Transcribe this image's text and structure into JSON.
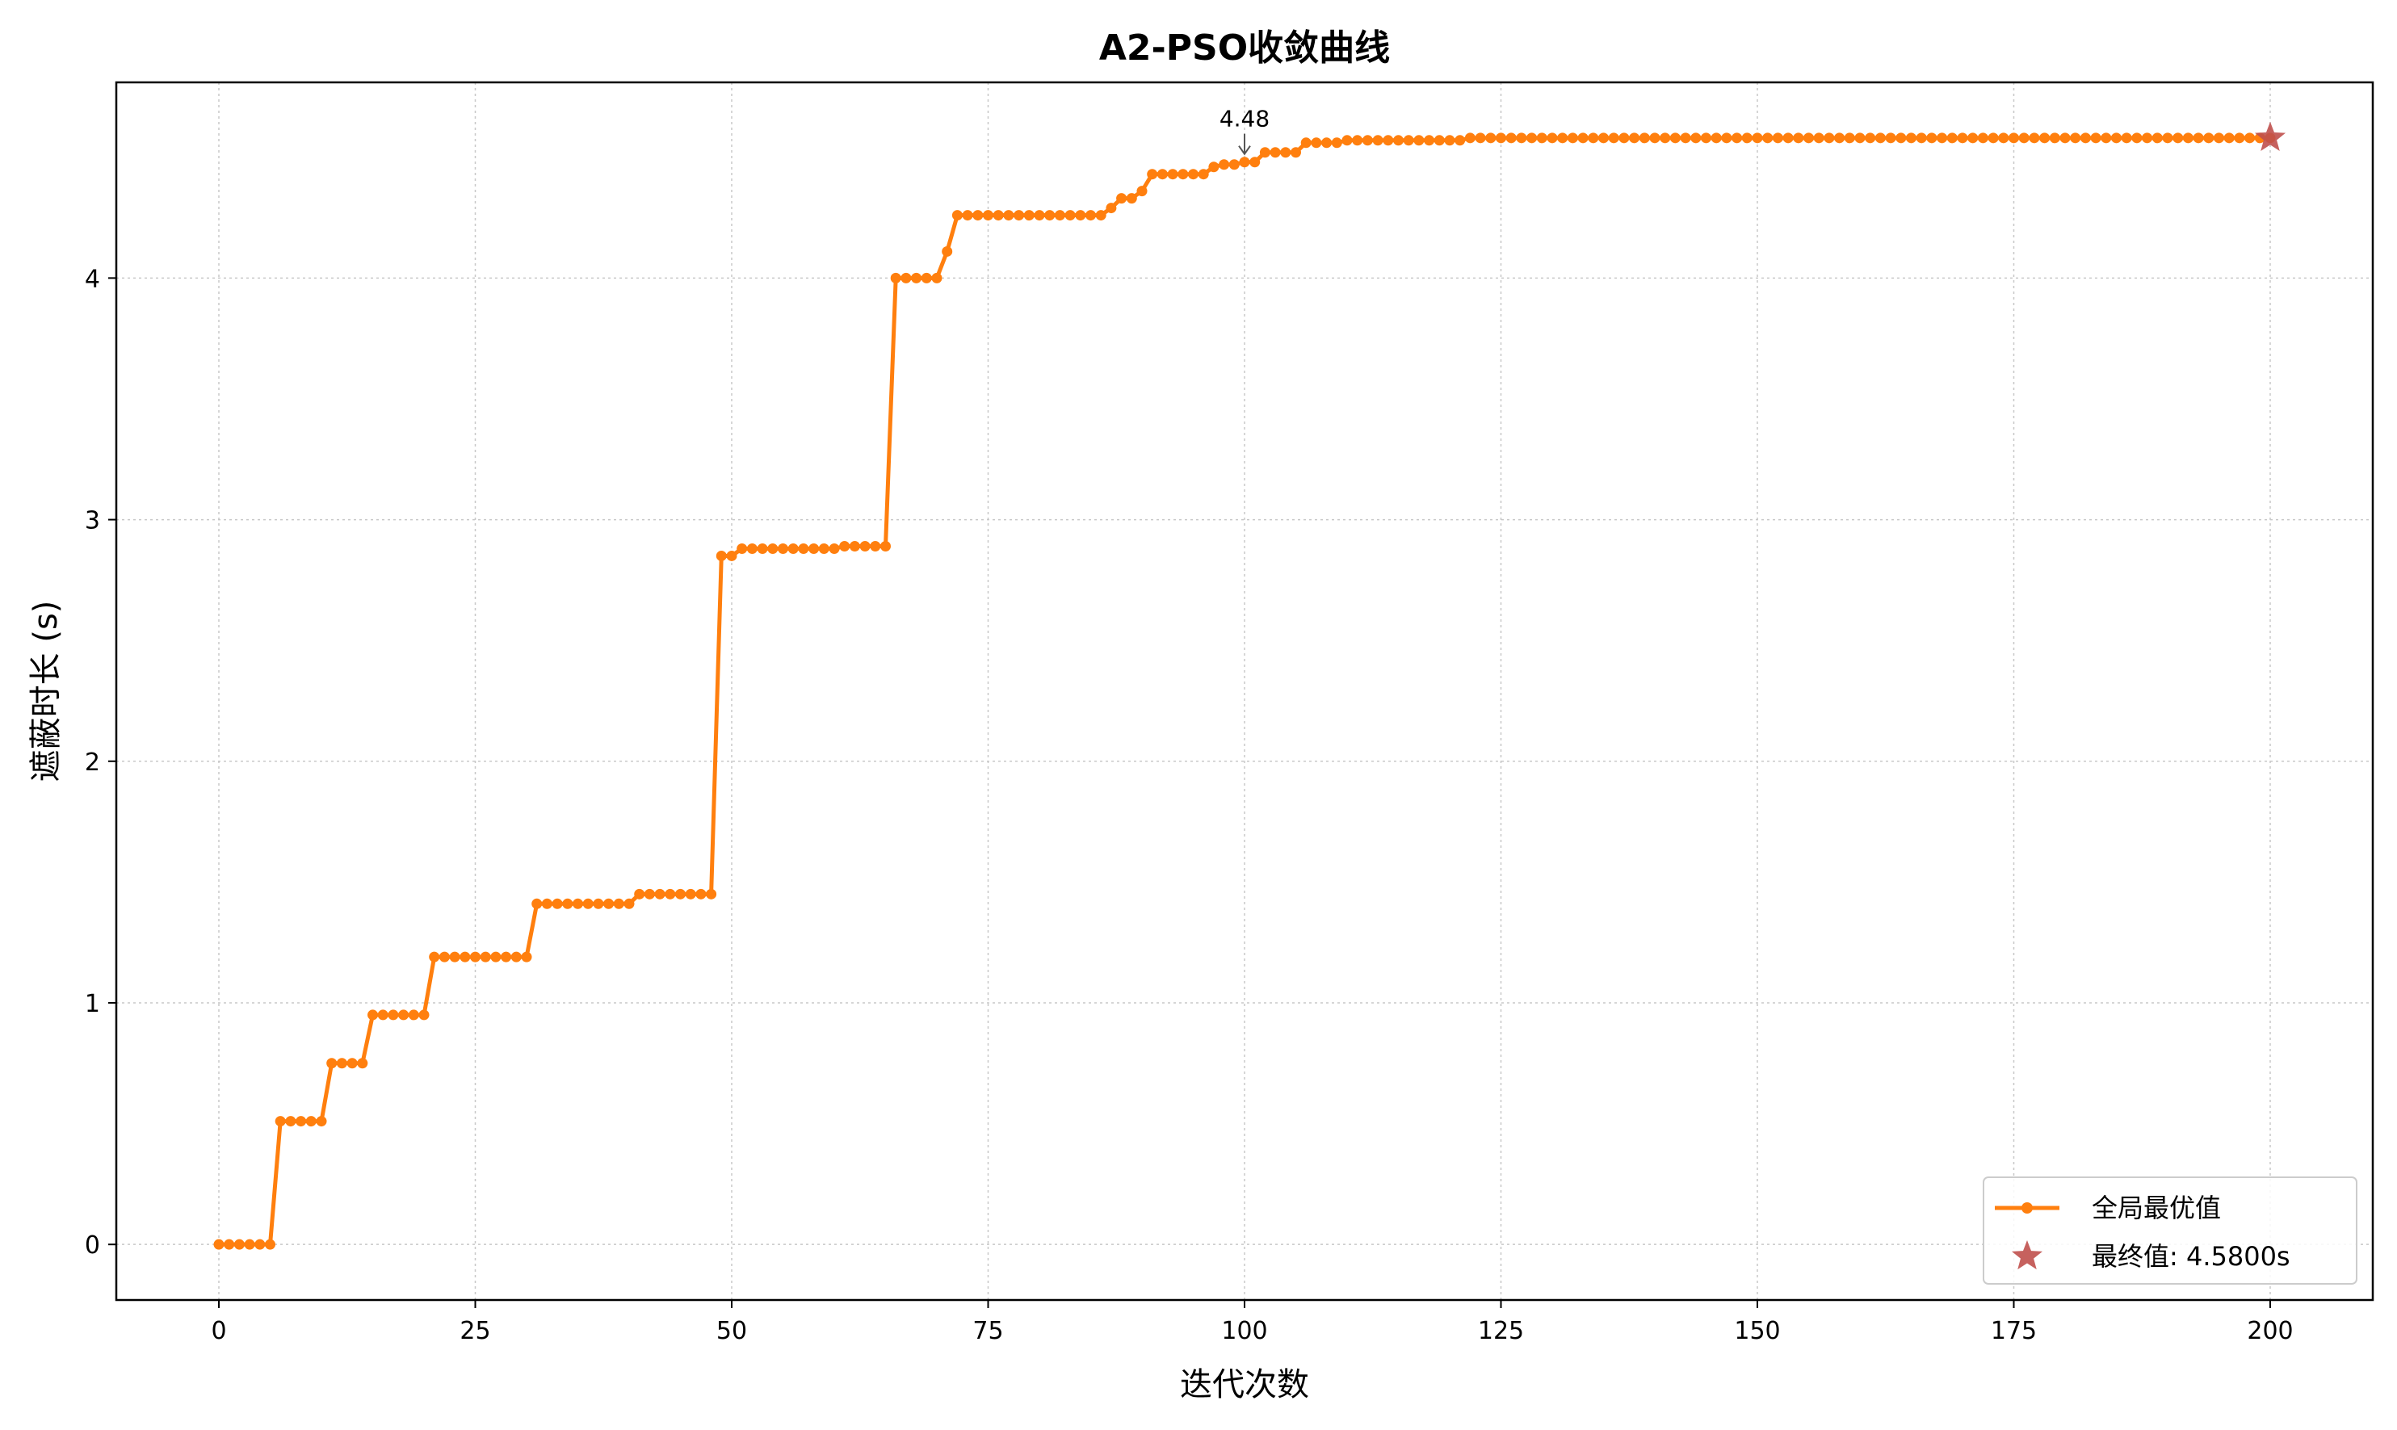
{
  "chart_data": {
    "type": "line",
    "title": "A2-PSO收敛曲线",
    "xlabel": "迭代次数",
    "ylabel": "遮蔽时长 (s)",
    "xlim": [
      -10,
      210
    ],
    "ylim": [
      -0.23,
      4.81
    ],
    "grid": true,
    "legend_position": "lower-right",
    "x_ticks": [
      0,
      25,
      50,
      75,
      100,
      125,
      150,
      175,
      200
    ],
    "y_ticks": [
      0,
      1,
      2,
      3,
      4
    ],
    "series": [
      {
        "name": "全局最优值",
        "color": "#ff7f0e",
        "marker": "circle",
        "steps": [
          [
            0,
            0.0
          ],
          [
            6,
            0.51
          ],
          [
            11,
            0.75
          ],
          [
            15,
            0.95
          ],
          [
            21,
            1.19
          ],
          [
            31,
            1.41
          ],
          [
            41,
            1.45
          ],
          [
            49,
            2.85
          ],
          [
            51,
            2.88
          ],
          [
            61,
            2.89
          ],
          [
            66,
            4.0
          ],
          [
            71,
            4.11
          ],
          [
            72,
            4.26
          ],
          [
            87,
            4.29
          ],
          [
            88,
            4.33
          ],
          [
            90,
            4.36
          ],
          [
            91,
            4.43
          ],
          [
            97,
            4.46
          ],
          [
            98,
            4.47
          ],
          [
            100,
            4.48
          ],
          [
            102,
            4.52
          ],
          [
            106,
            4.56
          ],
          [
            110,
            4.57
          ],
          [
            122,
            4.58
          ],
          [
            200,
            4.58
          ]
        ]
      }
    ],
    "final_point": {
      "label": "最终值: 4.5800s",
      "x": 200,
      "y": 4.58,
      "color": "#c0504d",
      "marker": "star"
    },
    "annotation": {
      "text": "4.48",
      "x": 100,
      "y": 4.48
    }
  }
}
